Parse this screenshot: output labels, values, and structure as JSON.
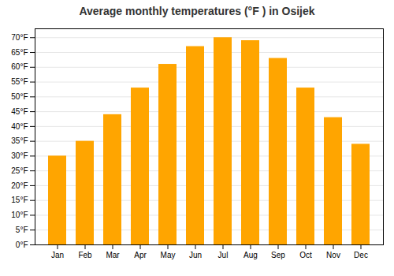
{
  "chart_data": {
    "type": "bar",
    "title": "Average monthly temperatures (°F ) in Osijek",
    "categories": [
      "Jan",
      "Feb",
      "Mar",
      "Apr",
      "May",
      "Jun",
      "Jul",
      "Aug",
      "Sep",
      "Oct",
      "Nov",
      "Dec"
    ],
    "values": [
      30,
      35,
      44,
      53,
      61,
      67,
      70,
      69,
      63,
      53,
      43,
      34
    ],
    "color": "#FFA500",
    "ylim": [
      0,
      73
    ],
    "yticks": [
      {
        "value": 0,
        "label": "0°F"
      },
      {
        "value": 5,
        "label": "5°F"
      },
      {
        "value": 10,
        "label": "10°F"
      },
      {
        "value": 15,
        "label": "15°F"
      },
      {
        "value": 20,
        "label": "20°F"
      },
      {
        "value": 25,
        "label": "25°F"
      },
      {
        "value": 30,
        "label": "30°F"
      },
      {
        "value": 35,
        "label": "35°F"
      },
      {
        "value": 40,
        "label": "40°F"
      },
      {
        "value": 45,
        "label": "45°F"
      },
      {
        "value": 50,
        "label": "50°F"
      },
      {
        "value": 55,
        "label": "55°F"
      },
      {
        "value": 60,
        "label": "60°F"
      },
      {
        "value": 65,
        "label": "65°F"
      },
      {
        "value": 70,
        "label": "70°F"
      }
    ],
    "grid": true
  }
}
